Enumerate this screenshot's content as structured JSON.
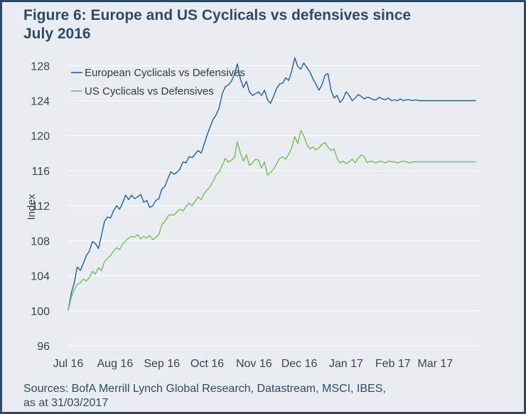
{
  "figure": {
    "title": "Figure 6: Europe and US Cyclicals vs defensives since\nJuly 2016",
    "source": "Sources: BofA Merrill Lynch Global Research, Datastream, MSCI, IBES,\nas at 31/03/2017"
  },
  "colors": {
    "background": "#e9edf2",
    "border": "#2c4a66",
    "title": "#2e4b66",
    "gridline": "#ffffff",
    "european_series": "#1f5fa8",
    "us_series": "#76bf4f"
  },
  "chart_data": {
    "type": "line",
    "title": "Figure 6: Europe and US Cyclicals vs defensives since July 2016",
    "xlabel": "",
    "ylabel": "Index",
    "ylim": [
      96,
      129
    ],
    "yticks": [
      96,
      100,
      104,
      108,
      112,
      116,
      120,
      124,
      128
    ],
    "x_tick_labels": [
      "Jul 16",
      "Aug 16",
      "Sep 16",
      "Oct 16",
      "Nov 16",
      "Dec 16",
      "Jan 17",
      "Feb 17",
      "Mar 17"
    ],
    "x_unit": "days since 1 Jul 2016",
    "x_ticks_days": [
      0,
      31,
      62,
      92,
      123,
      153,
      184,
      215,
      243
    ],
    "xlim": [
      0,
      273
    ],
    "grid": "horizontal",
    "legend_position": "top-left",
    "series": [
      {
        "name": "European Cyclicals vs Defensives",
        "color": "#1f5fa8",
        "x": [
          0,
          2,
          4,
          6,
          8,
          10,
          12,
          14,
          16,
          18,
          20,
          22,
          24,
          26,
          28,
          30,
          32,
          34,
          36,
          38,
          40,
          42,
          44,
          46,
          48,
          50,
          52,
          54,
          56,
          58,
          60,
          62,
          64,
          66,
          68,
          70,
          72,
          74,
          76,
          78,
          80,
          82,
          84,
          86,
          88,
          90,
          92,
          94,
          96,
          98,
          100,
          102,
          104,
          106,
          108,
          110,
          112,
          114,
          116,
          118,
          120,
          122,
          124,
          126,
          128,
          130,
          132,
          134,
          136,
          138,
          140,
          142,
          144,
          146,
          148,
          150,
          152,
          154,
          156,
          158,
          160,
          162,
          164,
          166,
          168,
          170,
          172,
          174,
          176,
          178,
          180,
          182,
          184,
          186,
          188,
          190,
          192,
          194,
          196,
          198,
          200,
          202,
          204,
          206,
          208,
          210,
          212,
          214,
          216,
          218,
          220,
          222,
          224,
          226,
          228,
          230,
          232,
          234,
          236,
          238,
          240,
          242,
          244,
          246,
          248,
          250,
          252,
          254,
          256,
          258,
          260,
          262,
          264,
          266,
          268,
          270
        ],
        "y": [
          100.0,
          102.0,
          103.2,
          105.0,
          104.6,
          105.4,
          106.3,
          106.8,
          107.9,
          107.7,
          107.1,
          108.6,
          110.2,
          110.7,
          110.6,
          111.4,
          112.0,
          111.6,
          112.3,
          113.2,
          112.7,
          113.2,
          112.8,
          113.0,
          113.3,
          112.4,
          112.6,
          111.8,
          112.0,
          112.6,
          112.8,
          113.9,
          114.2,
          115.1,
          115.9,
          115.6,
          115.8,
          116.2,
          117.0,
          116.9,
          117.6,
          117.5,
          117.9,
          118.3,
          118.0,
          119.0,
          120.1,
          121.0,
          121.9,
          122.4,
          123.2,
          124.8,
          125.6,
          125.8,
          126.2,
          127.0,
          128.2,
          126.5,
          125.5,
          126.2,
          125.0,
          124.6,
          124.8,
          125.0,
          124.6,
          125.2,
          124.1,
          123.7,
          124.5,
          125.4,
          125.9,
          126.0,
          126.6,
          126.3,
          127.4,
          128.9,
          127.9,
          127.6,
          128.3,
          127.8,
          127.3,
          126.5,
          125.9,
          125.2,
          125.8,
          126.9,
          127.1,
          125.2,
          124.3,
          124.6,
          123.8,
          124.2,
          125.0,
          124.6,
          124.0,
          124.3,
          124.7,
          124.5,
          124.2,
          124.4,
          124.3,
          124.1,
          124.1,
          124.4,
          124.2,
          124.1,
          124.3,
          124.0,
          124.1,
          124.0,
          124.2,
          124.0,
          124.1,
          124.1,
          124.0,
          124.1,
          124.0,
          124.0,
          124.0,
          124.0,
          124.0,
          124.0,
          124.0,
          124.0,
          124.0,
          124.0,
          124.0,
          124.0,
          124.0,
          124.0,
          124.0,
          124.0,
          124.0,
          124.0,
          124.0,
          124.0
        ]
      },
      {
        "name": "US Cyclicals vs Defensives",
        "color": "#76bf4f",
        "x": [
          0,
          2,
          4,
          6,
          8,
          10,
          12,
          14,
          16,
          18,
          20,
          22,
          24,
          26,
          28,
          30,
          32,
          34,
          36,
          38,
          40,
          42,
          44,
          46,
          48,
          50,
          52,
          54,
          56,
          58,
          60,
          62,
          64,
          66,
          68,
          70,
          72,
          74,
          76,
          78,
          80,
          82,
          84,
          86,
          88,
          90,
          92,
          94,
          96,
          98,
          100,
          102,
          104,
          106,
          108,
          110,
          112,
          114,
          116,
          118,
          120,
          122,
          124,
          126,
          128,
          130,
          132,
          134,
          136,
          138,
          140,
          142,
          144,
          146,
          148,
          150,
          152,
          154,
          156,
          158,
          160,
          162,
          164,
          166,
          168,
          170,
          172,
          174,
          176,
          178,
          180,
          182,
          184,
          186,
          188,
          190,
          192,
          194,
          196,
          198,
          200,
          202,
          204,
          206,
          208,
          210,
          212,
          214,
          216,
          218,
          220,
          222,
          224,
          226,
          228,
          230,
          232,
          234,
          236,
          238,
          240,
          242,
          244,
          246,
          248,
          250,
          252,
          254,
          256,
          258,
          260,
          262,
          264,
          266,
          268,
          270
        ],
        "y": [
          100.0,
          101.5,
          102.4,
          103.0,
          103.2,
          103.6,
          103.4,
          103.8,
          104.5,
          104.2,
          104.9,
          104.6,
          105.6,
          106.0,
          106.3,
          106.8,
          107.2,
          107.0,
          107.6,
          108.0,
          108.3,
          108.5,
          108.4,
          108.7,
          108.2,
          108.5,
          108.3,
          108.6,
          108.1,
          108.4,
          108.7,
          109.8,
          110.2,
          110.8,
          111.0,
          110.9,
          111.3,
          111.6,
          111.4,
          111.9,
          112.3,
          112.0,
          112.5,
          113.0,
          112.7,
          113.4,
          113.8,
          114.2,
          114.8,
          115.5,
          115.9,
          116.6,
          117.4,
          117.0,
          117.2,
          117.5,
          119.3,
          118.0,
          117.1,
          117.8,
          116.6,
          116.9,
          117.3,
          117.2,
          116.3,
          117.0,
          115.5,
          115.8,
          116.2,
          116.8,
          117.4,
          117.6,
          117.3,
          117.9,
          118.6,
          119.9,
          119.1,
          120.6,
          120.0,
          119.0,
          118.5,
          118.7,
          118.4,
          118.6,
          119.0,
          119.2,
          118.7,
          118.3,
          118.5,
          117.4,
          116.9,
          117.1,
          116.8,
          117.0,
          117.3,
          116.9,
          117.4,
          117.8,
          117.6,
          116.9,
          117.1,
          117.0,
          116.9,
          117.1,
          117.0,
          116.9,
          117.1,
          117.0,
          117.0,
          116.9,
          117.0,
          117.1,
          117.0,
          116.9,
          117.0,
          117.0,
          117.0,
          117.0,
          117.0,
          117.0,
          117.0,
          117.0,
          117.0,
          117.0,
          117.0,
          117.0,
          117.0,
          117.0,
          117.0,
          117.0,
          117.0,
          117.0,
          117.0,
          117.0,
          117.0,
          117.0
        ]
      }
    ]
  }
}
